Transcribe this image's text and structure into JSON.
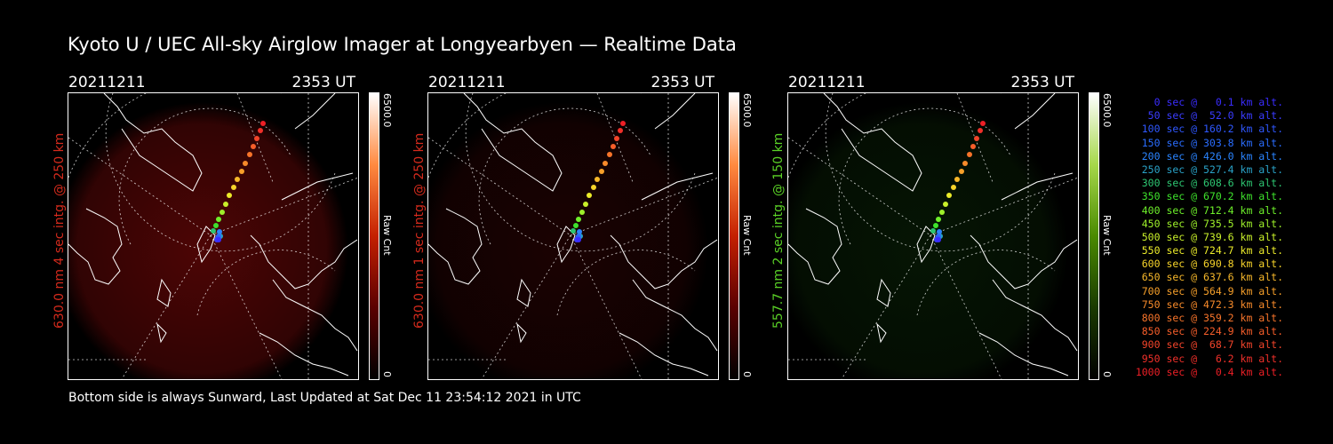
{
  "title": "Kyoto U / UEC All-sky Airglow Imager at Longyearbyen — Realtime Data",
  "footer": "Bottom side is always Sunward, Last Updated at Sat Dec 11 23:54:12 2021 in UTC",
  "panels": [
    {
      "date": "20211211",
      "time": "2353 UT",
      "ylabel": "630.0 nm 4 sec intg. @ 250 km",
      "label_color": "#d42a1c",
      "colorbar_max": "6500.0",
      "colorbar_unit": "Raw Cnt",
      "colorbar_min": "0",
      "colormap": "red"
    },
    {
      "date": "20211211",
      "time": "2353 UT",
      "ylabel": "630.0 nm 1 sec intg. @ 250 km",
      "label_color": "#d42a1c",
      "colorbar_max": "6500.0",
      "colorbar_unit": "Raw Cnt",
      "colorbar_min": "0",
      "colormap": "red"
    },
    {
      "date": "20211211",
      "time": "2353 UT",
      "ylabel": "557.7 nm 2 sec intg. @ 150 km",
      "label_color": "#5ad126",
      "colorbar_max": "6500.0",
      "colorbar_unit": "Raw Cnt",
      "colorbar_min": "0",
      "colormap": "green"
    }
  ],
  "legend": [
    {
      "text": "0 sec @   0.1 km alt.",
      "color": "#3a2cff"
    },
    {
      "text": "50 sec @  52.0 km alt.",
      "color": "#3a3cff"
    },
    {
      "text": "100 sec @ 160.2 km alt.",
      "color": "#2f58ff"
    },
    {
      "text": "150 sec @ 303.8 km alt.",
      "color": "#2a6dff"
    },
    {
      "text": "200 sec @ 426.0 km alt.",
      "color": "#2a84ff"
    },
    {
      "text": "250 sec @ 527.4 km alt.",
      "color": "#2aa2c8"
    },
    {
      "text": "300 sec @ 608.6 km alt.",
      "color": "#2dc672"
    },
    {
      "text": "350 sec @ 670.2 km alt.",
      "color": "#3ee22c"
    },
    {
      "text": "400 sec @ 712.4 km alt.",
      "color": "#6ef02a"
    },
    {
      "text": "450 sec @ 735.5 km alt.",
      "color": "#9ef02a"
    },
    {
      "text": "500 sec @ 739.6 km alt.",
      "color": "#c9f02a"
    },
    {
      "text": "550 sec @ 724.7 km alt.",
      "color": "#ecec2a"
    },
    {
      "text": "600 sec @ 690.8 km alt.",
      "color": "#f7d42a"
    },
    {
      "text": "650 sec @ 637.6 km alt.",
      "color": "#f7b82a"
    },
    {
      "text": "700 sec @ 564.9 km alt.",
      "color": "#f7a02a"
    },
    {
      "text": "750 sec @ 472.3 km alt.",
      "color": "#f78a2a"
    },
    {
      "text": "800 sec @ 359.2 km alt.",
      "color": "#f7742a"
    },
    {
      "text": "850 sec @ 224.9 km alt.",
      "color": "#f75e2a"
    },
    {
      "text": "900 sec @  68.7 km alt.",
      "color": "#f2442a"
    },
    {
      "text": "950 sec @   6.2 km alt.",
      "color": "#f0302a"
    },
    {
      "text": "1000 sec @   0.4 km alt.",
      "color": "#ee1f26"
    }
  ]
}
